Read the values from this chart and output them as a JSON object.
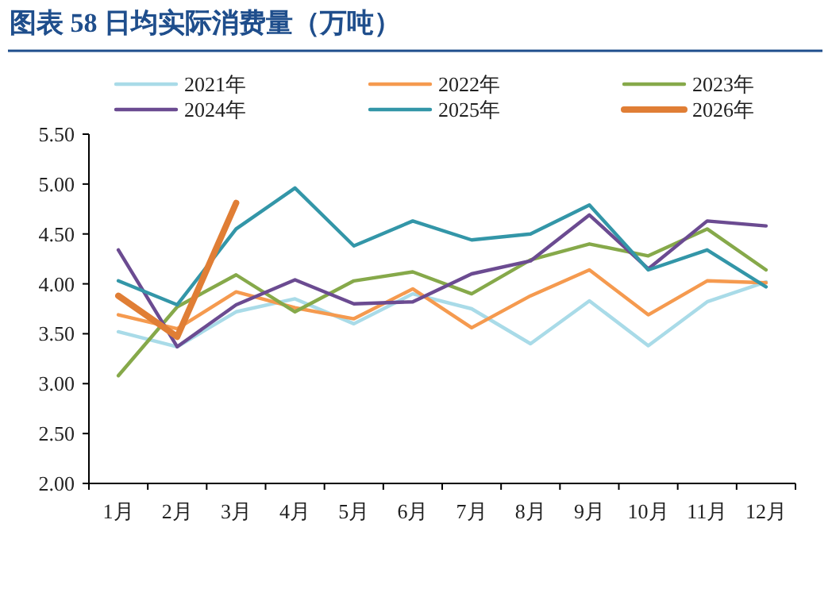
{
  "chart_data": {
    "type": "line",
    "title": "图表 58  日均实际消费量（万吨）",
    "categories": [
      "1月",
      "2月",
      "3月",
      "4月",
      "5月",
      "6月",
      "7月",
      "8月",
      "9月",
      "10月",
      "11月",
      "12月"
    ],
    "ylim": [
      2.0,
      5.5
    ],
    "yticks": [
      {
        "value": 2.0,
        "label": "2.00"
      },
      {
        "value": 2.5,
        "label": "2.50"
      },
      {
        "value": 3.0,
        "label": "3.00"
      },
      {
        "value": 3.5,
        "label": "3.50"
      },
      {
        "value": 4.0,
        "label": "4.00"
      },
      {
        "value": 4.5,
        "label": "4.50"
      },
      {
        "value": 5.0,
        "label": "5.00"
      },
      {
        "value": 5.5,
        "label": "5.50"
      }
    ],
    "grid": false,
    "legend": "top",
    "marker": "none",
    "line_style": "solid",
    "series": [
      {
        "name": "2021年",
        "color": "#a9dbe8",
        "values": [
          3.52,
          3.37,
          3.72,
          3.85,
          3.6,
          3.9,
          3.75,
          3.4,
          3.83,
          3.38,
          3.82,
          4.02
        ]
      },
      {
        "name": "2022年",
        "color": "#f59a4f",
        "values": [
          3.69,
          3.55,
          3.92,
          3.76,
          3.65,
          3.95,
          3.56,
          3.88,
          4.14,
          3.69,
          4.03,
          4.01
        ]
      },
      {
        "name": "2023年",
        "color": "#86a94a",
        "values": [
          3.08,
          3.77,
          4.09,
          3.72,
          4.03,
          4.12,
          3.9,
          4.24,
          4.4,
          4.28,
          4.55,
          4.14
        ]
      },
      {
        "name": "2024年",
        "color": "#6b4b91",
        "values": [
          4.34,
          3.37,
          3.79,
          4.04,
          3.8,
          3.82,
          4.1,
          4.23,
          4.69,
          4.15,
          4.63,
          4.58
        ]
      },
      {
        "name": "2025年",
        "color": "#3396a8",
        "values": [
          4.03,
          3.79,
          4.55,
          4.96,
          4.38,
          4.63,
          4.44,
          4.5,
          4.79,
          4.14,
          4.34,
          3.97
        ]
      },
      {
        "name": "2026年",
        "color": "#e07e35",
        "values": [
          3.88,
          3.47,
          4.81,
          null,
          null,
          null,
          null,
          null,
          null,
          null,
          null,
          null
        ]
      }
    ]
  }
}
